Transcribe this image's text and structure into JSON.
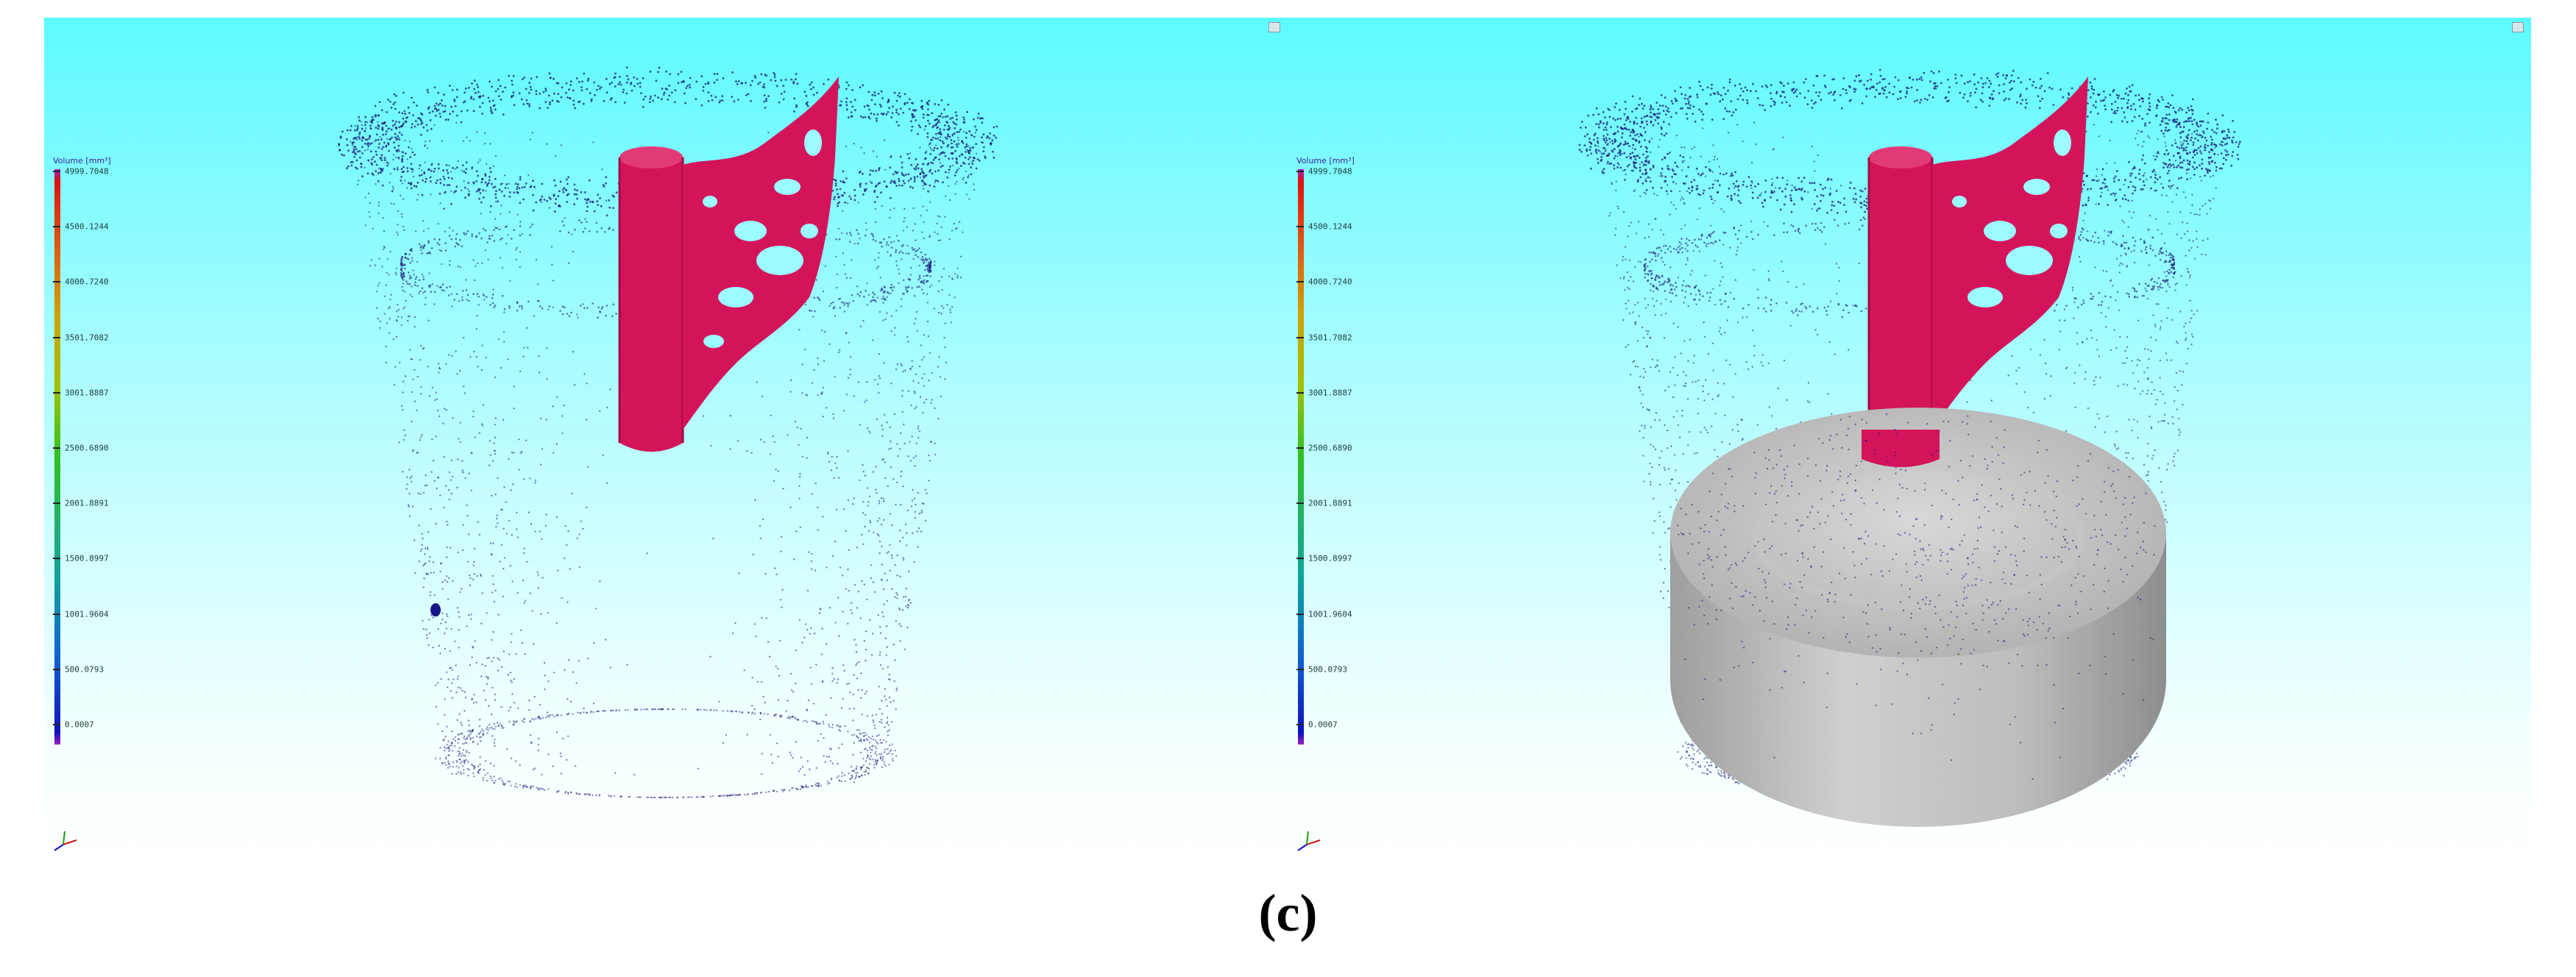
{
  "panels": [
    {
      "id": "left",
      "legend": {
        "title": "Volume [mm³]",
        "labels": [
          "4999.7048",
          "4500.1244",
          "4000.7240",
          "3501.7082",
          "3001.8887",
          "2500.6890",
          "2001.8891",
          "1500.8997",
          "1001.9604",
          "500.0793",
          "0.0007"
        ]
      }
    },
    {
      "id": "right",
      "legend": {
        "title": "Volume [mm³]",
        "labels": [
          "4999.7048",
          "4500.1244",
          "4000.7240",
          "3501.7082",
          "3001.8887",
          "2500.6890",
          "2001.8891",
          "1500.8997",
          "1001.9604",
          "500.0793",
          "0.0007"
        ]
      }
    }
  ],
  "caption": "(c)",
  "colors": {
    "background_top": "#5cfaff",
    "background_bottom": "#ffffff",
    "porosity_cluster": "#d4145a",
    "point_cloud": "#1a1a7a",
    "cast_part": "#b8b8b8"
  }
}
